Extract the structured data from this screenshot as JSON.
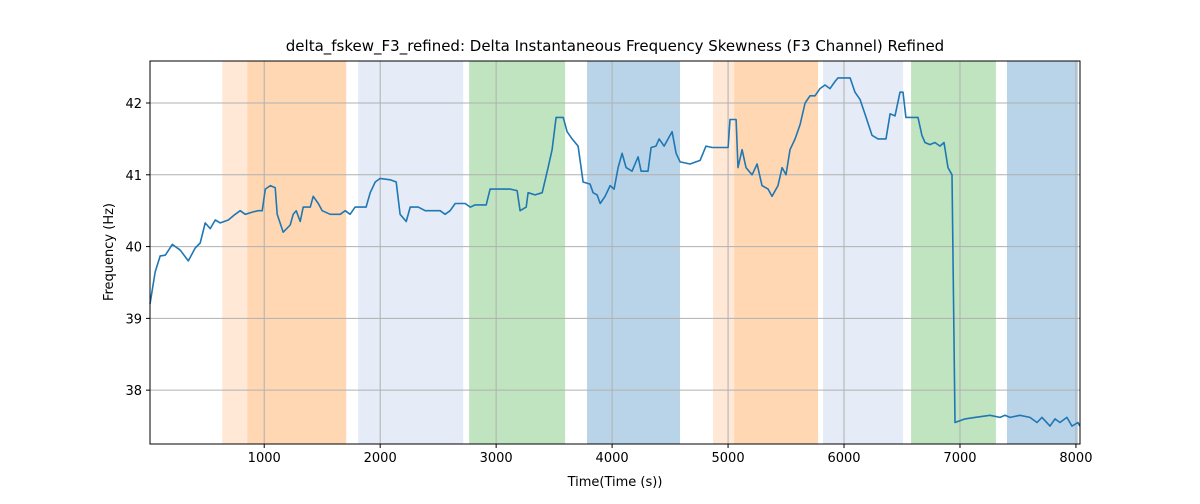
{
  "chart_data": {
    "type": "line",
    "title": "delta_fskew_F3_refined: Delta Instantaneous Frequency Skewness (F3 Channel) Refined",
    "x_label": "Time(Time (s))",
    "y_label": "Frequency (Hz)",
    "xlim": [
      15,
      8035
    ],
    "ylim": [
      37.25,
      42.585
    ],
    "xticks": [
      1000,
      2000,
      3000,
      4000,
      5000,
      6000,
      7000,
      8000
    ],
    "yticks": [
      38,
      39,
      40,
      41,
      42
    ],
    "grid": true,
    "spans": [
      {
        "x0": 638,
        "x1": 853,
        "color": "#ffe8d6"
      },
      {
        "x0": 853,
        "x1": 1707,
        "color": "#ffd8b3"
      },
      {
        "x0": 1810,
        "x1": 2716,
        "color": "#e5ecf7"
      },
      {
        "x0": 2767,
        "x1": 3595,
        "color": "#c0e4c0"
      },
      {
        "x0": 3784,
        "x1": 4586,
        "color": "#b9d4e8"
      },
      {
        "x0": 4871,
        "x1": 5052,
        "color": "#ffe8d6"
      },
      {
        "x0": 5052,
        "x1": 5776,
        "color": "#ffd8b3"
      },
      {
        "x0": 5819,
        "x1": 6509,
        "color": "#e5ecf7"
      },
      {
        "x0": 6578,
        "x1": 7310,
        "color": "#c0e4c0"
      },
      {
        "x0": 7405,
        "x1": 8017,
        "color": "#b9d4e8"
      }
    ],
    "series": [
      {
        "color": "#1f77b4",
        "x": [
          15,
          60,
          103,
          147,
          207,
          276,
          345,
          405,
          448,
          491,
          534,
          578,
          621,
          690,
          750,
          793,
          836,
          897,
          948,
          983,
          1009,
          1052,
          1095,
          1112,
          1164,
          1224,
          1250,
          1276,
          1310,
          1336,
          1397,
          1422,
          1466,
          1500,
          1569,
          1655,
          1698,
          1741,
          1784,
          1879,
          1914,
          1957,
          2000,
          2086,
          2138,
          2172,
          2224,
          2259,
          2328,
          2388,
          2517,
          2560,
          2603,
          2647,
          2733,
          2776,
          2819,
          2914,
          2948,
          3034,
          3121,
          3181,
          3207,
          3259,
          3276,
          3336,
          3397,
          3448,
          3483,
          3517,
          3578,
          3612,
          3655,
          3707,
          3750,
          3810,
          3836,
          3871,
          3897,
          3940,
          3983,
          4017,
          4052,
          4086,
          4121,
          4172,
          4224,
          4250,
          4310,
          4336,
          4379,
          4405,
          4448,
          4483,
          4517,
          4552,
          4586,
          4672,
          4759,
          4810,
          4862,
          5000,
          5017,
          5069,
          5086,
          5121,
          5155,
          5207,
          5250,
          5293,
          5345,
          5379,
          5431,
          5466,
          5500,
          5534,
          5578,
          5621,
          5664,
          5707,
          5750,
          5793,
          5836,
          5879,
          5922,
          5948,
          6052,
          6095,
          6138,
          6190,
          6241,
          6293,
          6362,
          6397,
          6440,
          6483,
          6509,
          6534,
          6638,
          6672,
          6698,
          6741,
          6784,
          6828,
          6862,
          6897,
          6931,
          6957,
          7043,
          7129,
          7259,
          7345,
          7388,
          7431,
          7517,
          7603,
          7664,
          7707,
          7776,
          7819,
          7862,
          7922,
          7966,
          8017,
          8034
        ],
        "values": [
          39.2,
          39.65,
          39.87,
          39.88,
          40.03,
          39.95,
          39.8,
          39.98,
          40.05,
          40.33,
          40.25,
          40.37,
          40.33,
          40.37,
          40.45,
          40.5,
          40.45,
          40.48,
          40.5,
          40.5,
          40.8,
          40.85,
          40.82,
          40.45,
          40.2,
          40.3,
          40.45,
          40.5,
          40.35,
          40.55,
          40.55,
          40.7,
          40.6,
          40.5,
          40.45,
          40.45,
          40.5,
          40.45,
          40.55,
          40.55,
          40.75,
          40.9,
          40.95,
          40.93,
          40.9,
          40.45,
          40.35,
          40.55,
          40.55,
          40.5,
          40.5,
          40.45,
          40.5,
          40.6,
          40.6,
          40.55,
          40.58,
          40.58,
          40.8,
          40.8,
          40.8,
          40.78,
          40.5,
          40.55,
          40.75,
          40.72,
          40.75,
          41.1,
          41.35,
          41.8,
          41.8,
          41.6,
          41.5,
          41.4,
          40.9,
          40.87,
          40.75,
          40.72,
          40.6,
          40.7,
          40.85,
          40.8,
          41.1,
          41.3,
          41.1,
          41.05,
          41.25,
          41.05,
          41.05,
          41.38,
          41.4,
          41.5,
          41.4,
          41.5,
          41.6,
          41.3,
          41.18,
          41.15,
          41.2,
          41.4,
          41.38,
          41.38,
          41.77,
          41.77,
          41.1,
          41.35,
          41.1,
          41.0,
          41.15,
          40.85,
          40.8,
          40.7,
          40.85,
          41.1,
          41.0,
          41.35,
          41.5,
          41.7,
          42.0,
          42.1,
          42.1,
          42.2,
          42.25,
          42.2,
          42.3,
          42.35,
          42.35,
          42.15,
          42.05,
          41.8,
          41.55,
          41.5,
          41.5,
          41.85,
          41.82,
          42.15,
          42.15,
          41.8,
          41.8,
          41.55,
          41.45,
          41.42,
          41.45,
          41.4,
          41.45,
          41.1,
          41.0,
          37.55,
          37.6,
          37.62,
          37.65,
          37.62,
          37.65,
          37.62,
          37.65,
          37.62,
          37.55,
          37.62,
          37.5,
          37.6,
          37.55,
          37.62,
          37.5,
          37.55,
          37.5
        ]
      }
    ]
  }
}
